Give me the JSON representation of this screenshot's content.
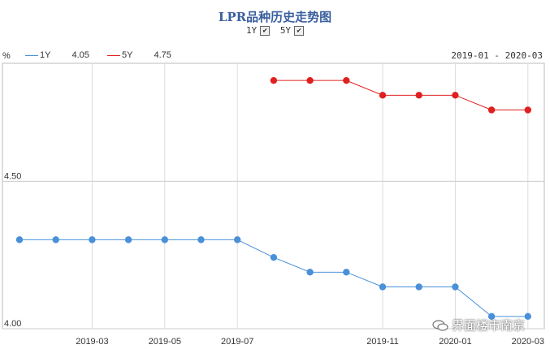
{
  "title": "LPR品种历史走势图",
  "toggles": [
    {
      "label": "1Y",
      "checked": true
    },
    {
      "label": "5Y",
      "checked": true
    }
  ],
  "unit": "%",
  "legend": [
    {
      "name": "1Y",
      "value": "4.05",
      "color": "#4a90d9"
    },
    {
      "name": "5Y",
      "value": "4.75",
      "color": "#e02020"
    }
  ],
  "date_range": "2019-01 - 2020-03",
  "watermark": "界面楼市南京",
  "chart_data": {
    "type": "line",
    "x": [
      "2019-01",
      "2019-02",
      "2019-03",
      "2019-04",
      "2019-05",
      "2019-06",
      "2019-07",
      "2019-08",
      "2019-09",
      "2019-10",
      "2019-11",
      "2019-12",
      "2020-01",
      "2020-02",
      "2020-03"
    ],
    "x_tick_labels": [
      "2019-03",
      "2019-05",
      "2019-07",
      "2019-11",
      "2020-01",
      "2020-03"
    ],
    "y_tick_labels": [
      "4.00",
      "4.50"
    ],
    "ylim": [
      4.0,
      4.9
    ],
    "grid": true,
    "series": [
      {
        "name": "1Y",
        "color": "#4a90d9",
        "values": [
          4.31,
          4.31,
          4.31,
          4.31,
          4.31,
          4.31,
          4.31,
          4.25,
          4.2,
          4.2,
          4.15,
          4.15,
          4.15,
          4.05,
          4.05
        ]
      },
      {
        "name": "5Y",
        "color": "#e02020",
        "values": [
          null,
          null,
          null,
          null,
          null,
          null,
          null,
          4.85,
          4.85,
          4.85,
          4.8,
          4.8,
          4.8,
          4.75,
          4.75
        ]
      }
    ]
  }
}
